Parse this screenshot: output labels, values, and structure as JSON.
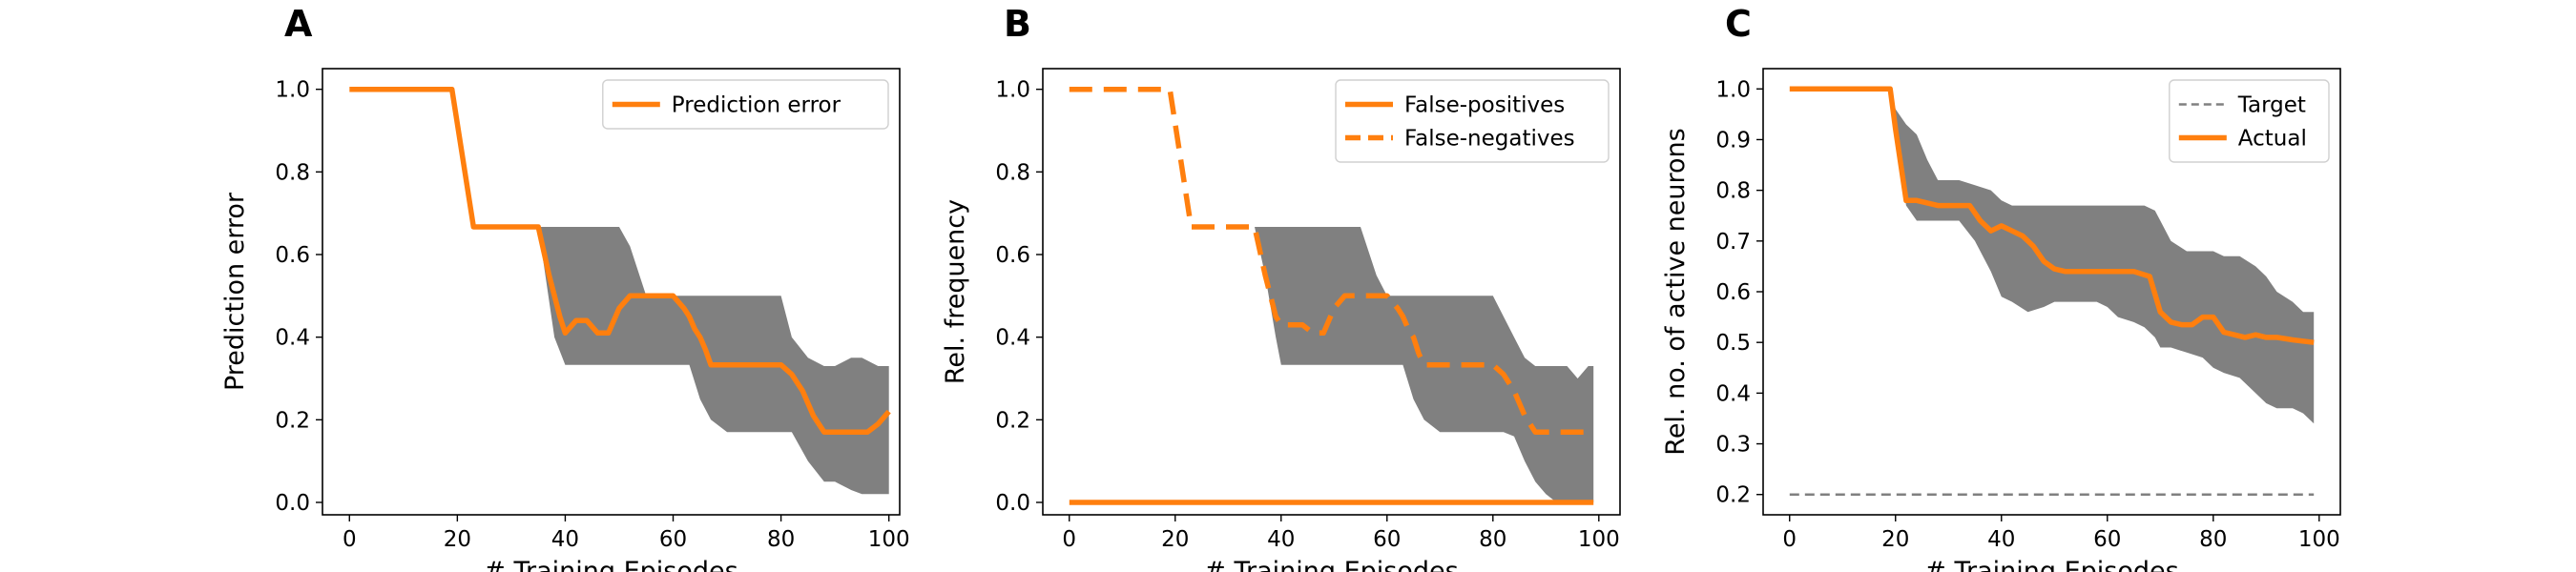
{
  "chart_data": [
    {
      "type": "line",
      "panel": "A",
      "xlabel": "# Training Episodes",
      "ylabel": "Prediction error",
      "xlim": [
        -5,
        102
      ],
      "ylim": [
        -0.03,
        1.05
      ],
      "xticks": [
        0,
        20,
        40,
        60,
        80,
        100
      ],
      "yticks": [
        0.0,
        0.2,
        0.4,
        0.6,
        0.8,
        1.0
      ],
      "ytick_format": 1,
      "legend_position": "top-right",
      "band": {
        "color": "#808080",
        "x": [
          35,
          38,
          40,
          45,
          47,
          50,
          52,
          55,
          58,
          60,
          63,
          65,
          67,
          70,
          75,
          80,
          82,
          85,
          88,
          90,
          93,
          95,
          98,
          100
        ],
        "upper": [
          0.667,
          0.667,
          0.667,
          0.667,
          0.667,
          0.667,
          0.62,
          0.5,
          0.5,
          0.5,
          0.5,
          0.5,
          0.5,
          0.5,
          0.5,
          0.5,
          0.4,
          0.35,
          0.33,
          0.33,
          0.35,
          0.35,
          0.33,
          0.33
        ],
        "lower": [
          0.667,
          0.4,
          0.333,
          0.333,
          0.333,
          0.333,
          0.333,
          0.333,
          0.333,
          0.333,
          0.333,
          0.25,
          0.2,
          0.17,
          0.17,
          0.17,
          0.17,
          0.1,
          0.05,
          0.05,
          0.03,
          0.02,
          0.02,
          0.02
        ]
      },
      "series": [
        {
          "name": "Prediction error",
          "color": "#ff7f0e",
          "dash": "",
          "x": [
            0,
            19,
            23,
            35,
            37,
            39,
            40,
            42,
            44,
            46,
            48,
            50,
            52,
            54,
            56,
            58,
            60,
            62,
            63,
            64,
            65,
            66,
            67,
            70,
            75,
            80,
            82,
            84,
            86,
            88,
            90,
            92,
            94,
            96,
            98,
            100
          ],
          "y": [
            1.0,
            1.0,
            0.667,
            0.667,
            0.55,
            0.45,
            0.41,
            0.44,
            0.44,
            0.41,
            0.41,
            0.47,
            0.5,
            0.5,
            0.5,
            0.5,
            0.5,
            0.47,
            0.45,
            0.42,
            0.4,
            0.37,
            0.333,
            0.333,
            0.333,
            0.333,
            0.31,
            0.27,
            0.21,
            0.17,
            0.17,
            0.17,
            0.17,
            0.17,
            0.19,
            0.22
          ]
        }
      ]
    },
    {
      "type": "line",
      "panel": "B",
      "xlabel": "# Training Episodes",
      "ylabel": "Rel. frequency",
      "xlim": [
        -5,
        104
      ],
      "ylim": [
        -0.03,
        1.05
      ],
      "xticks": [
        0,
        20,
        40,
        60,
        80,
        100
      ],
      "yticks": [
        0.0,
        0.2,
        0.4,
        0.6,
        0.8,
        1.0
      ],
      "ytick_format": 1,
      "legend_position": "top-right",
      "band": {
        "color": "#808080",
        "x": [
          35,
          37,
          39,
          40,
          45,
          50,
          52,
          55,
          58,
          60,
          63,
          65,
          67,
          70,
          75,
          80,
          82,
          84,
          86,
          88,
          90,
          92,
          94,
          96,
          98,
          99
        ],
        "upper": [
          0.667,
          0.667,
          0.667,
          0.667,
          0.667,
          0.667,
          0.667,
          0.667,
          0.55,
          0.5,
          0.5,
          0.5,
          0.5,
          0.5,
          0.5,
          0.5,
          0.45,
          0.4,
          0.35,
          0.33,
          0.33,
          0.33,
          0.33,
          0.3,
          0.33,
          0.33
        ],
        "lower": [
          0.667,
          0.55,
          0.4,
          0.333,
          0.333,
          0.333,
          0.333,
          0.333,
          0.333,
          0.333,
          0.333,
          0.25,
          0.2,
          0.17,
          0.17,
          0.17,
          0.17,
          0.16,
          0.1,
          0.05,
          0.02,
          0.0,
          0.0,
          0.0,
          0.0,
          0.0
        ]
      },
      "series": [
        {
          "name": "False-positives",
          "color": "#ff7f0e",
          "dash": "",
          "x": [
            0,
            99
          ],
          "y": [
            0.0,
            0.0
          ]
        },
        {
          "name": "False-negatives",
          "color": "#ff7f0e",
          "dash": "24,12",
          "x": [
            0,
            19,
            23,
            35,
            37,
            39,
            40,
            42,
            44,
            46,
            48,
            50,
            52,
            54,
            56,
            58,
            60,
            62,
            63,
            64,
            65,
            66,
            67,
            70,
            75,
            80,
            82,
            84,
            86,
            88,
            90,
            92,
            94,
            96,
            98,
            99
          ],
          "y": [
            1.0,
            1.0,
            0.667,
            0.667,
            0.55,
            0.45,
            0.43,
            0.43,
            0.43,
            0.41,
            0.41,
            0.47,
            0.5,
            0.5,
            0.5,
            0.5,
            0.5,
            0.47,
            0.45,
            0.42,
            0.4,
            0.36,
            0.333,
            0.333,
            0.333,
            0.333,
            0.31,
            0.27,
            0.21,
            0.17,
            0.17,
            0.17,
            0.17,
            0.17,
            0.17,
            0.17
          ]
        }
      ]
    },
    {
      "type": "line",
      "panel": "C",
      "xlabel": "# Training Episodes",
      "ylabel": "Rel. no. of active neurons",
      "xlim": [
        -5,
        104
      ],
      "ylim": [
        0.16,
        1.04
      ],
      "xticks": [
        0,
        20,
        40,
        60,
        80,
        100
      ],
      "yticks": [
        0.2,
        0.3,
        0.4,
        0.5,
        0.6,
        0.7,
        0.8,
        0.9,
        1.0
      ],
      "ytick_format": 1,
      "legend_position": "top-right",
      "band": {
        "color": "#808080",
        "x": [
          19,
          20,
          22,
          24,
          26,
          28,
          30,
          32,
          35,
          38,
          40,
          42,
          45,
          48,
          50,
          52,
          55,
          58,
          60,
          62,
          65,
          67,
          69,
          70,
          72,
          75,
          78,
          80,
          82,
          85,
          88,
          90,
          92,
          95,
          97,
          99
        ],
        "upper": [
          1.0,
          0.96,
          0.93,
          0.91,
          0.86,
          0.82,
          0.82,
          0.82,
          0.81,
          0.8,
          0.78,
          0.77,
          0.77,
          0.77,
          0.77,
          0.77,
          0.77,
          0.77,
          0.77,
          0.77,
          0.77,
          0.77,
          0.76,
          0.74,
          0.7,
          0.68,
          0.68,
          0.68,
          0.67,
          0.67,
          0.65,
          0.63,
          0.6,
          0.58,
          0.56,
          0.56
        ],
        "lower": [
          1.0,
          0.9,
          0.77,
          0.74,
          0.74,
          0.74,
          0.74,
          0.74,
          0.7,
          0.64,
          0.59,
          0.58,
          0.56,
          0.57,
          0.58,
          0.58,
          0.58,
          0.58,
          0.57,
          0.55,
          0.54,
          0.53,
          0.51,
          0.49,
          0.49,
          0.48,
          0.47,
          0.45,
          0.44,
          0.43,
          0.4,
          0.38,
          0.37,
          0.37,
          0.36,
          0.34
        ]
      },
      "series": [
        {
          "name": "Target",
          "color": "#808080",
          "dash": "10,6",
          "thin": true,
          "x": [
            0,
            99
          ],
          "y": [
            0.2,
            0.2
          ]
        },
        {
          "name": "Actual",
          "color": "#ff7f0e",
          "dash": "",
          "x": [
            0,
            19,
            20,
            22,
            24,
            26,
            28,
            30,
            32,
            34,
            36,
            38,
            40,
            42,
            44,
            46,
            48,
            50,
            52,
            55,
            60,
            65,
            68,
            70,
            72,
            74,
            76,
            78,
            80,
            82,
            84,
            86,
            88,
            90,
            92,
            95,
            99
          ],
          "y": [
            1.0,
            1.0,
            0.92,
            0.78,
            0.78,
            0.775,
            0.77,
            0.77,
            0.77,
            0.77,
            0.74,
            0.72,
            0.73,
            0.72,
            0.71,
            0.69,
            0.66,
            0.645,
            0.64,
            0.64,
            0.64,
            0.64,
            0.63,
            0.56,
            0.54,
            0.535,
            0.535,
            0.55,
            0.55,
            0.52,
            0.515,
            0.51,
            0.515,
            0.51,
            0.51,
            0.505,
            0.5
          ]
        }
      ]
    }
  ]
}
